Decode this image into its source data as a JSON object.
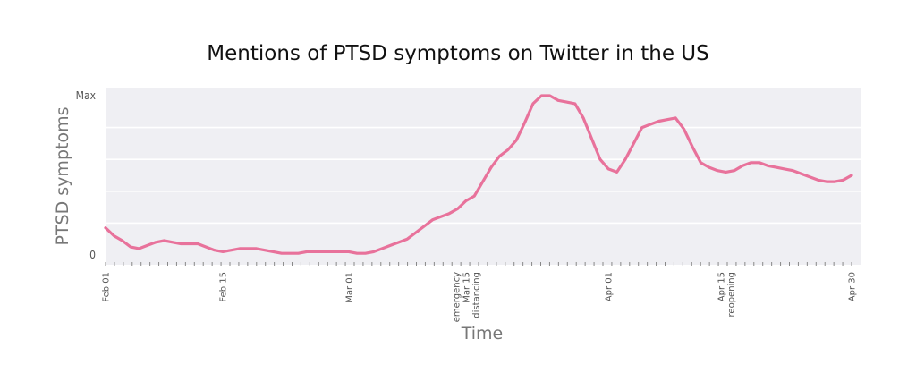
{
  "chart_data": {
    "type": "line",
    "title": "Mentions of PTSD symptoms on Twitter in the US",
    "xlabel": "Time",
    "ylabel": "PTSD symptoms",
    "ylim": [
      0,
      1
    ],
    "ytick_labels": [
      {
        "value": 1,
        "label": "Max"
      },
      {
        "value": 0,
        "label": "0"
      }
    ],
    "gridlines": [
      0.2,
      0.4,
      0.6,
      0.8
    ],
    "xlim": [
      0,
      89
    ],
    "xtick_labels": [
      {
        "x": 0,
        "lines": [
          "Feb 01"
        ]
      },
      {
        "x": 14,
        "lines": [
          "Feb 15"
        ]
      },
      {
        "x": 29,
        "lines": [
          "Mar 01"
        ]
      },
      {
        "x": 43,
        "lines": [
          "emergency",
          "Mar 15",
          "distancing"
        ]
      },
      {
        "x": 60,
        "lines": [
          "Apr 01"
        ]
      },
      {
        "x": 74,
        "lines": [
          "Apr 15",
          "reopening"
        ]
      },
      {
        "x": 89,
        "lines": [
          "Apr 30"
        ]
      }
    ],
    "series": [
      {
        "color": "#e8729b",
        "x": [
          0,
          1,
          2,
          3,
          4,
          5,
          6,
          7,
          8,
          9,
          10,
          11,
          12,
          13,
          14,
          15,
          16,
          17,
          18,
          19,
          20,
          21,
          22,
          23,
          24,
          25,
          26,
          27,
          28,
          29,
          30,
          31,
          32,
          33,
          34,
          35,
          36,
          37,
          38,
          39,
          40,
          41,
          42,
          43,
          44,
          45,
          46,
          47,
          48,
          49,
          50,
          51,
          52,
          53,
          54,
          55,
          56,
          57,
          58,
          59,
          60,
          61,
          62,
          63,
          64,
          65,
          66,
          67,
          68,
          69,
          70,
          71,
          72,
          73,
          74,
          75,
          76,
          77,
          78,
          79,
          80,
          81,
          82,
          83,
          84,
          85,
          86,
          87,
          88,
          89
        ],
        "values": [
          0.17,
          0.12,
          0.09,
          0.05,
          0.04,
          0.06,
          0.08,
          0.09,
          0.08,
          0.07,
          0.07,
          0.07,
          0.05,
          0.03,
          0.02,
          0.03,
          0.04,
          0.04,
          0.04,
          0.03,
          0.02,
          0.01,
          0.01,
          0.01,
          0.02,
          0.02,
          0.02,
          0.02,
          0.02,
          0.02,
          0.01,
          0.01,
          0.02,
          0.04,
          0.06,
          0.08,
          0.1,
          0.14,
          0.18,
          0.22,
          0.24,
          0.26,
          0.29,
          0.34,
          0.37,
          0.46,
          0.55,
          0.62,
          0.66,
          0.72,
          0.83,
          0.95,
          1.0,
          1.0,
          0.97,
          0.96,
          0.95,
          0.86,
          0.73,
          0.6,
          0.54,
          0.52,
          0.6,
          0.7,
          0.8,
          0.82,
          0.84,
          0.85,
          0.86,
          0.79,
          0.68,
          0.58,
          0.55,
          0.53,
          0.52,
          0.53,
          0.56,
          0.58,
          0.58,
          0.56,
          0.55,
          0.54,
          0.53,
          0.51,
          0.49,
          0.47,
          0.46,
          0.46,
          0.47,
          0.5
        ]
      }
    ]
  }
}
